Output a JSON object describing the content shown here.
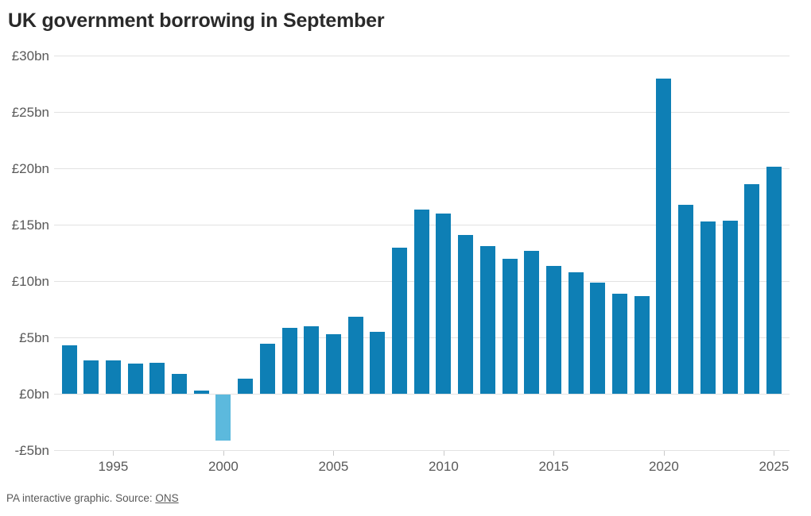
{
  "title": "UK government borrowing in September",
  "footer": {
    "credit": "PA interactive graphic. Source: ",
    "source_link": "ONS"
  },
  "colors": {
    "bar": "#0e7fb5",
    "bar_negative": "#5cb9dd",
    "grid": "#e2e2e2",
    "axis_text": "#595959",
    "title_text": "#2a2a2a"
  },
  "chart_data": {
    "type": "bar",
    "title": "UK government borrowing in September",
    "unit": "£bn",
    "x": [
      1993,
      1994,
      1995,
      1996,
      1997,
      1998,
      1999,
      2000,
      2001,
      2002,
      2003,
      2004,
      2005,
      2006,
      2007,
      2008,
      2009,
      2010,
      2011,
      2012,
      2013,
      2014,
      2015,
      2016,
      2017,
      2018,
      2019,
      2020,
      2021,
      2022,
      2023,
      2024,
      2025
    ],
    "values": [
      4.3,
      3.0,
      3.0,
      2.7,
      2.8,
      1.8,
      0.3,
      -4.1,
      1.4,
      4.5,
      5.9,
      6.0,
      5.3,
      6.9,
      5.5,
      13.0,
      16.4,
      16.0,
      14.1,
      13.1,
      12.0,
      12.7,
      11.4,
      10.8,
      9.9,
      8.9,
      8.7,
      28.0,
      16.8,
      15.3,
      15.4,
      18.6,
      20.2
    ],
    "negative_color_years": [
      2000
    ],
    "y_tick_values": [
      30,
      25,
      20,
      15,
      10,
      5,
      0,
      -5
    ],
    "y_tick_labels": [
      "£30bn",
      "£25bn",
      "£20bn",
      "£15bn",
      "£10bn",
      "£5bn",
      "£0bn",
      "-£5bn"
    ],
    "x_tick_years": [
      1995,
      2000,
      2005,
      2010,
      2015,
      2020,
      2025
    ],
    "x_tick_labels": [
      "1995",
      "2000",
      "2005",
      "2010",
      "2015",
      "2020",
      "2025"
    ],
    "ylim": [
      -5,
      30
    ],
    "grid": true,
    "legend": "none",
    "xlabel": "",
    "ylabel": ""
  }
}
